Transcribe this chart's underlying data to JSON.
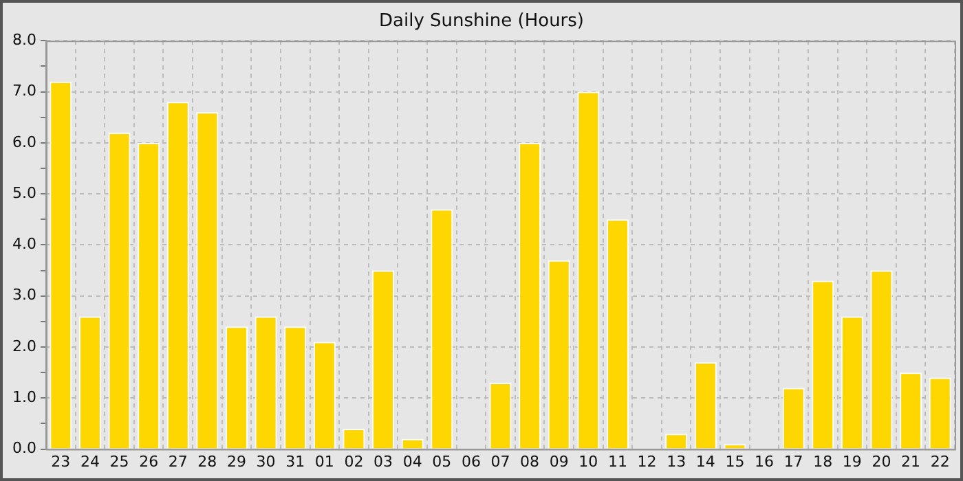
{
  "chart_data": {
    "type": "bar",
    "title": "Daily Sunshine (Hours)",
    "categories": [
      "23",
      "24",
      "25",
      "26",
      "27",
      "28",
      "29",
      "30",
      "31",
      "01",
      "02",
      "03",
      "04",
      "05",
      "06",
      "07",
      "08",
      "09",
      "10",
      "11",
      "12",
      "13",
      "14",
      "15",
      "16",
      "17",
      "18",
      "19",
      "20",
      "21",
      "22"
    ],
    "values": [
      7.2,
      2.6,
      6.2,
      6.0,
      6.8,
      6.6,
      2.4,
      2.6,
      2.4,
      2.1,
      0.4,
      3.5,
      0.2,
      4.7,
      0,
      1.3,
      6.0,
      3.7,
      7.0,
      4.5,
      0,
      0.3,
      1.7,
      0.1,
      0,
      1.2,
      3.3,
      2.6,
      3.5,
      1.5,
      1.4
    ],
    "color": "#ffd700",
    "ylim": [
      0,
      8
    ],
    "yticks": [
      {
        "value": 0,
        "label": "0.0"
      },
      {
        "value": 0.5,
        "label": null
      },
      {
        "value": 1,
        "label": "1.0"
      },
      {
        "value": 1.5,
        "label": null
      },
      {
        "value": 2,
        "label": "2.0"
      },
      {
        "value": 2.5,
        "label": null
      },
      {
        "value": 3,
        "label": "3.0"
      },
      {
        "value": 3.5,
        "label": null
      },
      {
        "value": 4,
        "label": "4.0"
      },
      {
        "value": 4.5,
        "label": null
      },
      {
        "value": 5,
        "label": "5.0"
      },
      {
        "value": 5.5,
        "label": null
      },
      {
        "value": 6,
        "label": "6.0"
      },
      {
        "value": 6.5,
        "label": null
      },
      {
        "value": 7,
        "label": "7.0"
      },
      {
        "value": 7.5,
        "label": null
      },
      {
        "value": 8,
        "label": "8.0"
      }
    ],
    "grid": true,
    "legend": false
  }
}
